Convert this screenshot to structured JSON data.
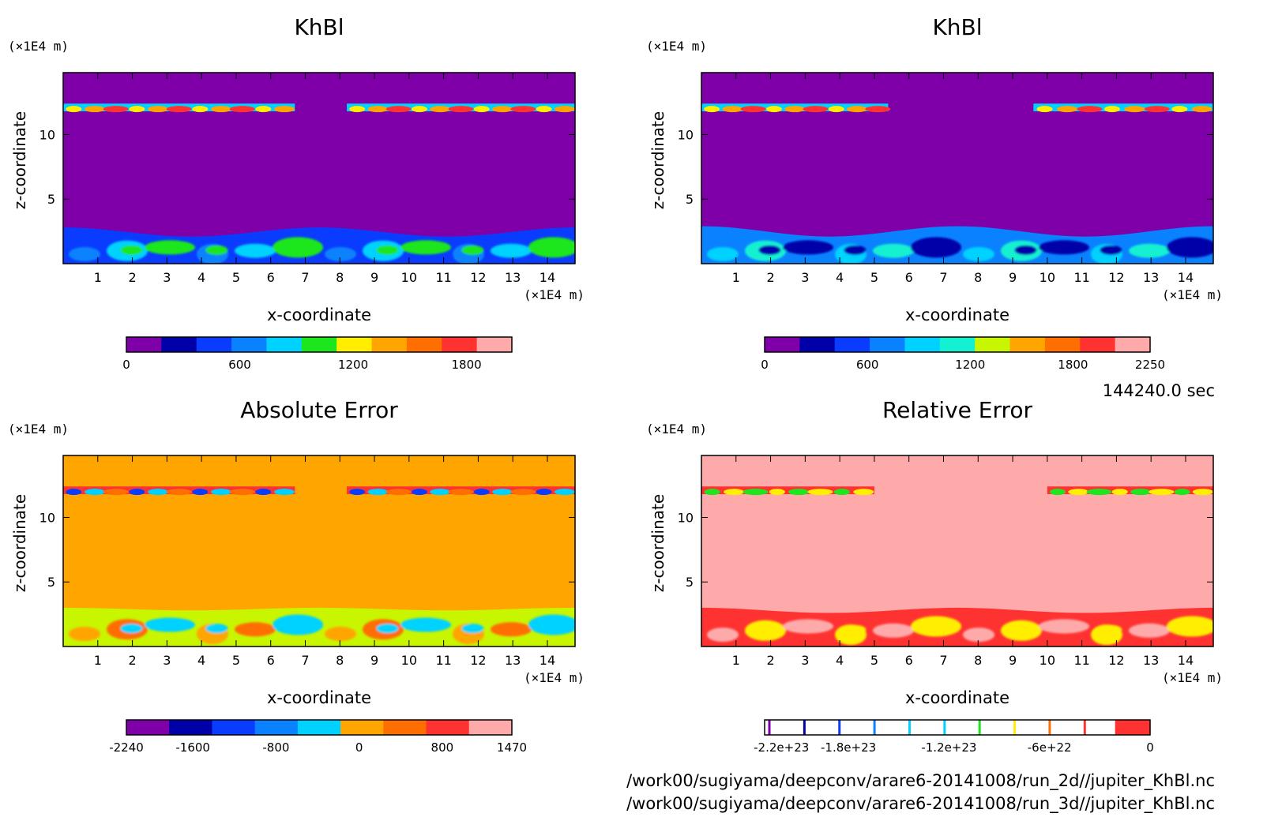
{
  "time_label": "144240.0 sec",
  "file_paths": [
    "/work00/sugiyama/deepconv/arare6-20141008/run_2d//jupiter_KhBl.nc",
    "/work00/sugiyama/deepconv/arare6-20141008/run_3d//jupiter_KhBl.nc"
  ],
  "colors": {
    "purple": "#7f00a8",
    "navy": "#0000a8",
    "blue": "#0a3cff",
    "azure": "#0a82ff",
    "cyan": "#00d2ff",
    "teal": "#14f0d2",
    "green": "#1ee61e",
    "lime": "#c8f500",
    "yellow": "#ffee00",
    "orange": "#ffa500",
    "darkorange": "#ff6e00",
    "red": "#ff3232",
    "pink": "#ffaaaa"
  },
  "chart_data": [
    {
      "type": "heatmap",
      "title": "KhBl",
      "xlabel": "x-coordinate",
      "ylabel": "z-coordinate",
      "x_unit": "(×1E4 m)",
      "y_unit": "(×1E4 m)",
      "xlim": [
        0,
        14.8
      ],
      "ylim": [
        0,
        14.8
      ],
      "x_ticks": [
        "1",
        "2",
        "3",
        "4",
        "5",
        "6",
        "7",
        "8",
        "9",
        "10",
        "11",
        "12",
        "13",
        "14"
      ],
      "y_ticks": [
        "5",
        "10"
      ],
      "background_level": "purple",
      "field": {
        "upper_band_z": [
          11.8,
          12.4
        ],
        "upper_band_segments": [
          [
            0.0,
            6.7
          ],
          [
            8.2,
            14.8
          ]
        ],
        "upper_band_levels": [
          "cyan",
          "yellow",
          "orange",
          "red"
        ],
        "lower_layer_top_z": [
          2.1,
          2.8
        ],
        "lower_layer_levels": [
          "blue",
          "azure",
          "cyan",
          "green"
        ]
      },
      "colorbar": {
        "levels": [
          "purple",
          "navy",
          "blue",
          "azure",
          "cyan",
          "green",
          "yellow",
          "orange",
          "darkorange",
          "red",
          "pink"
        ],
        "ticks": [
          "0",
          "600",
          "1200",
          "1800"
        ],
        "tick_values": [
          0,
          600,
          1200,
          1800
        ],
        "range": [
          0,
          2040
        ]
      }
    },
    {
      "type": "heatmap",
      "title": "KhBl",
      "xlabel": "x-coordinate",
      "ylabel": "z-coordinate",
      "x_unit": "(×1E4 m)",
      "y_unit": "(×1E4 m)",
      "xlim": [
        0,
        14.8
      ],
      "ylim": [
        0,
        14.8
      ],
      "x_ticks": [
        "1",
        "2",
        "3",
        "4",
        "5",
        "6",
        "7",
        "8",
        "9",
        "10",
        "11",
        "12",
        "13",
        "14"
      ],
      "y_ticks": [
        "5",
        "10"
      ],
      "background_level": "purple",
      "field": {
        "upper_band_z": [
          11.8,
          12.4
        ],
        "upper_band_segments": [
          [
            0.0,
            5.4
          ],
          [
            9.6,
            14.8
          ]
        ],
        "upper_band_levels": [
          "cyan",
          "yellow",
          "orange",
          "red"
        ],
        "lower_layer_top_z": [
          2.1,
          2.9
        ],
        "lower_layer_levels": [
          "azure",
          "cyan",
          "teal",
          "navy"
        ]
      },
      "colorbar": {
        "levels": [
          "purple",
          "navy",
          "blue",
          "azure",
          "cyan",
          "teal",
          "lime",
          "orange",
          "darkorange",
          "red",
          "pink"
        ],
        "ticks": [
          "0",
          "600",
          "1200",
          "1800",
          "2250"
        ],
        "tick_values": [
          0,
          600,
          1200,
          1800,
          2250
        ],
        "range": [
          0,
          2250
        ]
      }
    },
    {
      "type": "heatmap",
      "title": "Absolute Error",
      "xlabel": "x-coordinate",
      "ylabel": "z-coordinate",
      "x_unit": "(×1E4 m)",
      "y_unit": "(×1E4 m)",
      "xlim": [
        0,
        14.8
      ],
      "ylim": [
        0,
        14.8
      ],
      "x_ticks": [
        "1",
        "2",
        "3",
        "4",
        "5",
        "6",
        "7",
        "8",
        "9",
        "10",
        "11",
        "12",
        "13",
        "14"
      ],
      "y_ticks": [
        "5",
        "10"
      ],
      "background_level": "orange",
      "field": {
        "upper_band_z": [
          11.8,
          12.4
        ],
        "upper_band_segments": [
          [
            0.0,
            6.7
          ],
          [
            8.2,
            14.8
          ]
        ],
        "upper_band_levels": [
          "red",
          "blue",
          "cyan",
          "darkorange"
        ],
        "lower_layer_top_z": [
          2.8,
          3.0
        ],
        "lower_layer_levels": [
          "lime",
          "orange",
          "darkorange",
          "cyan"
        ]
      },
      "colorbar": {
        "levels": [
          "purple",
          "navy",
          "blue",
          "azure",
          "cyan",
          "orange",
          "darkorange",
          "red",
          "pink"
        ],
        "ticks": [
          "-2240",
          "-1600",
          "-800",
          "0",
          "800",
          "1470"
        ],
        "tick_values": [
          -2240,
          -1600,
          -800,
          0,
          800,
          1470
        ],
        "range": [
          -2240,
          1470
        ]
      }
    },
    {
      "type": "heatmap",
      "title": "Relative Error",
      "xlabel": "x-coordinate",
      "ylabel": "z-coordinate",
      "x_unit": "(×1E4 m)",
      "y_unit": "(×1E4 m)",
      "xlim": [
        0,
        14.8
      ],
      "ylim": [
        0,
        14.8
      ],
      "x_ticks": [
        "1",
        "2",
        "3",
        "4",
        "5",
        "6",
        "7",
        "8",
        "9",
        "10",
        "11",
        "12",
        "13",
        "14"
      ],
      "y_ticks": [
        "5",
        "10"
      ],
      "background_level": "pink",
      "field": {
        "upper_band_z": [
          11.8,
          12.4
        ],
        "upper_band_segments": [
          [
            0.0,
            5.0
          ],
          [
            10.0,
            14.8
          ]
        ],
        "upper_band_levels": [
          "red",
          "green",
          "yellow"
        ],
        "lower_layer_top_z": [
          2.6,
          3.0
        ],
        "lower_layer_levels": [
          "red",
          "pink",
          "yellow"
        ]
      },
      "colorbar": {
        "levels": [
          "purple",
          "navy",
          "blue",
          "azure",
          "cyan",
          "cyan",
          "green",
          "yellow",
          "darkorange",
          "red",
          "red"
        ],
        "ticks": [
          "-2.2e+23",
          "-1.8e+23",
          "-1.2e+23",
          "-6e+22",
          "0"
        ],
        "tick_values": [
          -2.2e+23,
          -1.8e+23,
          -1.2e+23,
          -6e+22,
          0
        ],
        "range": [
          -2.3e+23,
          0
        ],
        "style": "line-segments"
      }
    }
  ]
}
